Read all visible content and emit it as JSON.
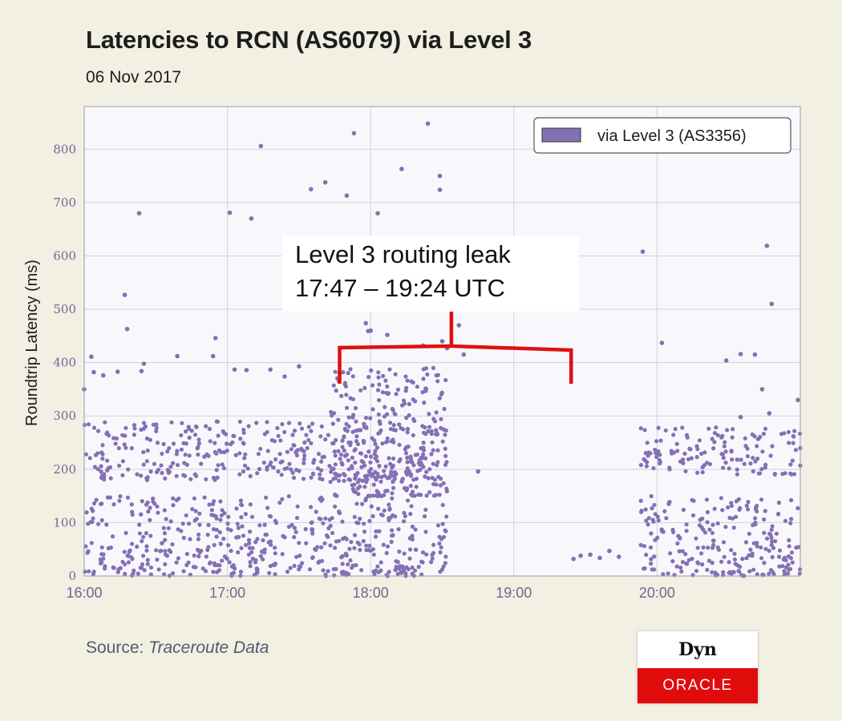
{
  "chart_data": {
    "type": "scatter",
    "title": "Latencies to RCN (AS6079) via Level 3",
    "subtitle": "06 Nov 2017",
    "xlabel": "",
    "ylabel": "Roundtrip Latency (ms)",
    "x_ticks": [
      "16:00",
      "17:00",
      "18:00",
      "19:00",
      "20:00"
    ],
    "y_ticks": [
      0,
      100,
      200,
      300,
      400,
      500,
      600,
      700,
      800
    ],
    "xlim": [
      "16:00",
      "21:00"
    ],
    "ylim": [
      0,
      880
    ],
    "grid": true,
    "legend": {
      "position": "top-right",
      "entries": [
        "via Level 3 (AS3356)"
      ]
    },
    "series": [
      {
        "name": "via Level 3 (AS3356)",
        "color": "#8470b4",
        "points": [
          [
            "16:00",
            350
          ],
          [
            "16:03",
            411
          ],
          [
            "16:04",
            382
          ],
          [
            "16:08",
            376
          ],
          [
            "16:14",
            383
          ],
          [
            "16:17",
            527
          ],
          [
            "16:18",
            463
          ],
          [
            "16:23",
            680
          ],
          [
            "16:25",
            398
          ],
          [
            "16:24",
            384
          ],
          [
            "16:39",
            412
          ],
          [
            "16:54",
            412
          ],
          [
            "16:55",
            446
          ],
          [
            "17:01",
            681
          ],
          [
            "17:03",
            387
          ],
          [
            "17:08",
            386
          ],
          [
            "17:10",
            670
          ],
          [
            "17:14",
            806
          ],
          [
            "17:18",
            387
          ],
          [
            "17:24",
            374
          ],
          [
            "17:30",
            393
          ],
          [
            "17:35",
            725
          ],
          [
            "17:41",
            738
          ],
          [
            "17:47",
            380
          ],
          [
            "17:50",
            713
          ],
          [
            "17:53",
            830
          ],
          [
            "17:58",
            474
          ],
          [
            "17:59",
            459
          ],
          [
            "18:00",
            460
          ],
          [
            "18:03",
            680
          ],
          [
            "18:07",
            452
          ],
          [
            "18:13",
            763
          ],
          [
            "18:24",
            848
          ],
          [
            "18:22",
            432
          ],
          [
            "18:29",
            750
          ],
          [
            "18:29",
            724
          ],
          [
            "18:30",
            440
          ],
          [
            "18:32",
            427
          ],
          [
            "18:37",
            470
          ],
          [
            "18:39",
            415
          ],
          [
            "18:45",
            196
          ],
          [
            "19:25",
            32
          ],
          [
            "19:28",
            38
          ],
          [
            "19:32",
            40
          ],
          [
            "19:36",
            34
          ],
          [
            "19:40",
            47
          ],
          [
            "19:44",
            36
          ],
          [
            "19:54",
            608
          ],
          [
            "20:02",
            437
          ],
          [
            "20:29",
            404
          ],
          [
            "20:35",
            416
          ],
          [
            "20:41",
            415
          ],
          [
            "20:46",
            619
          ],
          [
            "20:48",
            510
          ],
          [
            "20:59",
            330
          ],
          [
            "20:35",
            298
          ],
          [
            "20:27",
            260
          ],
          [
            "20:44",
            350
          ],
          [
            "20:47",
            305
          ]
        ],
        "dense_bands": [
          {
            "from": "16:00",
            "to": "18:32",
            "latency_ms": [
              0,
              150
            ]
          },
          {
            "from": "16:00",
            "to": "18:32",
            "latency_ms": [
              180,
              290
            ]
          },
          {
            "from": "17:43",
            "to": "18:32",
            "latency_ms": [
              150,
              390
            ]
          },
          {
            "from": "19:53",
            "to": "21:00",
            "latency_ms": [
              0,
              150
            ]
          },
          {
            "from": "19:53",
            "to": "21:00",
            "latency_ms": [
              190,
              280
            ]
          }
        ]
      }
    ],
    "annotations": [
      {
        "text_lines": [
          "Level 3 routing leak",
          "17:47 – 19:24 UTC"
        ],
        "bracket_from": "17:47",
        "bracket_to": "19:24",
        "color": "#e01010"
      }
    ],
    "source_label": "Source:",
    "source_value": "Traceroute Data"
  },
  "logo": {
    "top": "Dyn",
    "bottom": "ORACLE",
    "top_bg": "#ffffff",
    "bottom_bg": "#e00c0c"
  },
  "colors": {
    "background": "#f2efe3",
    "plot_bg": "#f8f8fc",
    "grid": "#cfcfdb",
    "axis_text": "#6d6892",
    "marker": "#8470b4",
    "bracket": "#e01010"
  }
}
